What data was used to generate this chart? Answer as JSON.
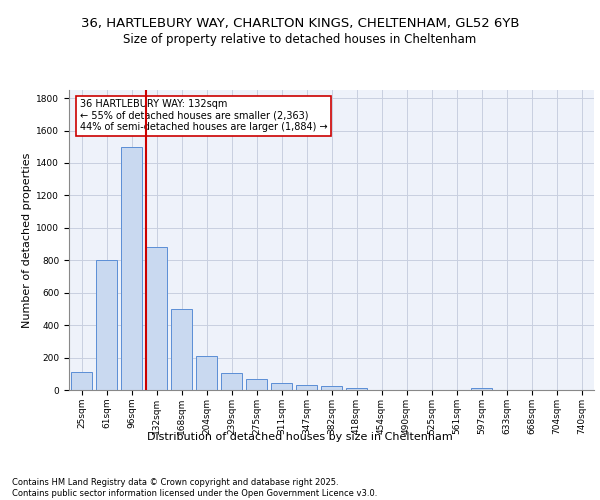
{
  "title_line1": "36, HARTLEBURY WAY, CHARLTON KINGS, CHELTENHAM, GL52 6YB",
  "title_line2": "Size of property relative to detached houses in Cheltenham",
  "xlabel": "Distribution of detached houses by size in Cheltenham",
  "ylabel": "Number of detached properties",
  "categories": [
    "25sqm",
    "61sqm",
    "96sqm",
    "132sqm",
    "168sqm",
    "204sqm",
    "239sqm",
    "275sqm",
    "311sqm",
    "347sqm",
    "382sqm",
    "418sqm",
    "454sqm",
    "490sqm",
    "525sqm",
    "561sqm",
    "597sqm",
    "633sqm",
    "668sqm",
    "704sqm",
    "740sqm"
  ],
  "values": [
    110,
    800,
    1500,
    880,
    500,
    210,
    105,
    65,
    45,
    30,
    25,
    10,
    0,
    0,
    0,
    0,
    15,
    0,
    0,
    0,
    0
  ],
  "bar_color": "#c9d9f0",
  "bar_edge_color": "#5b8ed6",
  "grid_color": "#c8cfe0",
  "red_line_index": 3,
  "red_line_color": "#cc0000",
  "annotation_text": "36 HARTLEBURY WAY: 132sqm\n← 55% of detached houses are smaller (2,363)\n44% of semi-detached houses are larger (1,884) →",
  "annotation_box_color": "#cc0000",
  "ylim": [
    0,
    1850
  ],
  "yticks": [
    0,
    200,
    400,
    600,
    800,
    1000,
    1200,
    1400,
    1600,
    1800
  ],
  "footer_text": "Contains HM Land Registry data © Crown copyright and database right 2025.\nContains public sector information licensed under the Open Government Licence v3.0.",
  "bg_color": "#eef2fa",
  "fig_bg_color": "#ffffff",
  "title_fontsize": 9.5,
  "subtitle_fontsize": 8.5,
  "axis_label_fontsize": 8,
  "tick_fontsize": 6.5,
  "footer_fontsize": 6,
  "annot_fontsize": 7
}
